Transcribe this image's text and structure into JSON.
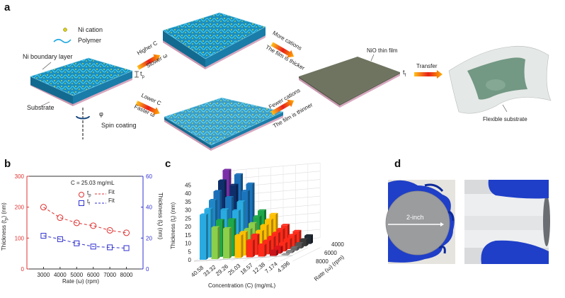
{
  "panels": {
    "a": {
      "label": "a",
      "legend": {
        "ni_cation": "Ni cation",
        "polymer": "Polymer"
      },
      "ni_boundary_layer": "Ni boundary layer",
      "substrate": "Substrate",
      "tp": "t",
      "tp_sub": "p",
      "phi": "φ",
      "spin_coating": "Spin coating",
      "arrow_up_top": "Higher C",
      "arrow_up_bottom": "Slower ω",
      "arrow_down_top": "Lower C",
      "arrow_down_bottom": "Faster ω",
      "arrow_more_top": "More cations",
      "arrow_more_bottom": "The film is thicker",
      "arrow_fewer_top": "Fewer cations",
      "arrow_fewer_bottom": "The film is thinner",
      "nio_thin_film": "NiO thin film",
      "tf": "t",
      "tf_sub": "f",
      "transfer": "Transfer",
      "flexible_substrate": "Flexible substrate"
    },
    "b": {
      "label": "b"
    },
    "c": {
      "label": "c"
    },
    "d": {
      "label": "d",
      "wafer_label": "2-inch"
    }
  },
  "chart_data": [
    {
      "type": "scatter",
      "panel": "b",
      "annotation": "C = 25.03 mg/mL",
      "xlabel": "Rate (ω) (rpm)",
      "ylabel_left": "Thickness (tp) (nm)",
      "ylabel_left_parts": [
        "Thickness (t",
        "p",
        ") (nm)"
      ],
      "ylabel_right_parts": [
        "Thickness (t",
        "f",
        ") (nm)"
      ],
      "xlim": [
        2000,
        9000
      ],
      "ylim_left": [
        0,
        300
      ],
      "ylim_right": [
        0,
        60
      ],
      "xticks": [
        "3000",
        "4000",
        "5000",
        "6000",
        "7000",
        "8000"
      ],
      "yticks_left": [
        "0",
        "100",
        "200",
        "300"
      ],
      "yticks_right": [
        "0",
        "20",
        "40",
        "60"
      ],
      "x": [
        3000,
        4000,
        5000,
        6000,
        7000,
        8000
      ],
      "series": [
        {
          "name": "tp",
          "sub": "p",
          "axis": "left",
          "marker": "circle",
          "color": "#e03030",
          "values": [
            200,
            166,
            149,
            140,
            125,
            117
          ]
        },
        {
          "name": "tf",
          "sub": "f",
          "axis": "right",
          "marker": "square",
          "color": "#3030d0",
          "values": [
            21.5,
            19.3,
            16.6,
            14.5,
            14.0,
            13.5
          ]
        }
      ],
      "legend": {
        "fit": "Fit",
        "t": "t"
      }
    },
    {
      "type": "bar",
      "variant": "3d",
      "panel": "c",
      "xlabel": "Concentration (C) (mg/mL)",
      "ylabel_parts": [
        "Thickness (t",
        "f",
        ")  (nm)"
      ],
      "zlabel": "Rate (ω) (rpm)",
      "categories": [
        "40.58",
        "33.32",
        "29.26",
        "25.03",
        "18.57",
        "12.38",
        "7.174",
        "4.396"
      ],
      "rates": [
        8000,
        7000,
        6000,
        5000,
        4000,
        3000
      ],
      "rate_ticks": [
        "4000",
        "6000",
        "8000"
      ],
      "yticks": [
        "0",
        "5",
        "10",
        "15",
        "20",
        "25",
        "30",
        "35",
        "40",
        "45"
      ],
      "ylim": [
        0,
        45
      ],
      "values": [
        [
          27,
          29,
          33,
          37,
          42,
          47
        ],
        [
          19,
          22,
          27,
          33,
          39,
          44
        ],
        [
          18,
          22,
          26,
          30,
          35,
          38
        ],
        [
          13.5,
          14,
          14.5,
          16.6,
          19.3,
          21.5
        ],
        [
          10,
          12,
          13,
          15,
          17,
          19
        ],
        [
          7,
          8,
          9,
          10,
          11,
          12
        ],
        [
          3,
          4,
          5,
          6,
          7,
          8
        ],
        [
          0.5,
          1,
          2,
          3,
          4,
          5
        ]
      ]
    }
  ]
}
